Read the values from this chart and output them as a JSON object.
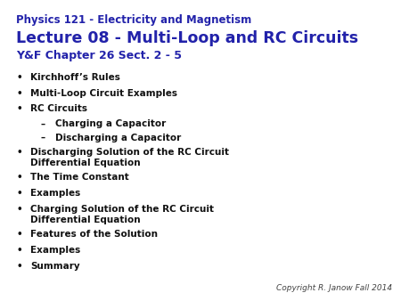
{
  "background_color": "#ffffff",
  "title_line1": "Physics 121 - Electricity and Magnetism",
  "title_line2": "Lecture 08 - Multi-Loop and RC Circuits",
  "title_line3": "Y&F Chapter 26 Sect. 2 - 5",
  "title_color": "#2222AA",
  "bullet_color": "#111111",
  "bullet_items": [
    {
      "level": 0,
      "text": "Kirchhoff’s Rules"
    },
    {
      "level": 0,
      "text": "Multi-Loop Circuit Examples"
    },
    {
      "level": 0,
      "text": "RC Circuits"
    },
    {
      "level": 1,
      "text": "Charging a Capacitor"
    },
    {
      "level": 1,
      "text": "Discharging a Capacitor"
    },
    {
      "level": 0,
      "text": "Discharging Solution of the RC Circuit\nDifferential Equation"
    },
    {
      "level": 0,
      "text": "The Time Constant"
    },
    {
      "level": 0,
      "text": "Examples"
    },
    {
      "level": 0,
      "text": "Charging Solution of the RC Circuit\nDifferential Equation"
    },
    {
      "level": 0,
      "text": "Features of the Solution"
    },
    {
      "level": 0,
      "text": "Examples"
    },
    {
      "level": 0,
      "text": "Summary"
    }
  ],
  "copyright_text": "Copyright R. Janow Fall 2014",
  "copyright_color": "#444444",
  "copyright_fontsize": 6.5,
  "title1_fontsize": 8.5,
  "title2_fontsize": 12.5,
  "title3_fontsize": 9.0,
  "bullet_fontsize": 7.5,
  "sub_bullet_fontsize": 7.5
}
